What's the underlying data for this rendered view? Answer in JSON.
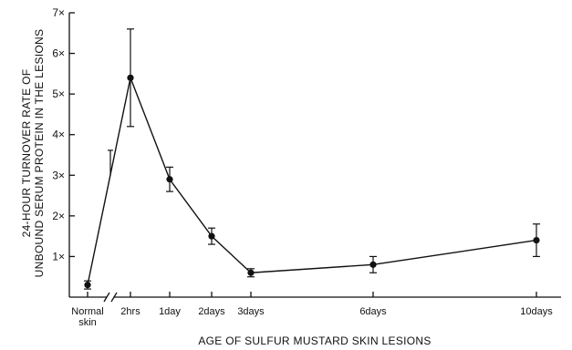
{
  "chart_data": {
    "type": "line",
    "xlabel": "AGE OF SULFUR MUSTARD SKIN LESIONS",
    "ylabel_lines": [
      "24-HOUR TURNOVER RATE OF",
      "UNBOUND SERUM PROTEIN IN THE LESIONS"
    ],
    "x_tick_labels": [
      [
        "Normal",
        "skin"
      ],
      [
        "2hrs"
      ],
      [
        "1day"
      ],
      [
        "2days"
      ],
      [
        "3days"
      ],
      [
        "6days"
      ],
      [
        "10days"
      ]
    ],
    "y_ticks": [
      {
        "value": 1,
        "label": "1×"
      },
      {
        "value": 2,
        "label": "2×"
      },
      {
        "value": 3,
        "label": "3×"
      },
      {
        "value": 4,
        "label": "4×"
      },
      {
        "value": 5,
        "label": "5×"
      },
      {
        "value": 6,
        "label": "6×"
      },
      {
        "value": 7,
        "label": "7×"
      }
    ],
    "ylim": [
      0,
      7
    ],
    "x_axis_break_after": "Normal skin",
    "series": [
      {
        "points": [
          {
            "x": "Normal skin",
            "y": 0.3,
            "err_low": 0.2,
            "err_high": 0.4
          },
          {
            "x": "2hrs",
            "y": 5.4,
            "err_low": 4.2,
            "err_high": 6.6
          },
          {
            "x": "1day",
            "y": 2.9,
            "err_low": 2.6,
            "err_high": 3.2
          },
          {
            "x": "2days",
            "y": 1.5,
            "err_low": 1.3,
            "err_high": 1.7
          },
          {
            "x": "3days",
            "y": 0.6,
            "err_low": 0.5,
            "err_high": 0.7
          },
          {
            "x": "6days",
            "y": 0.8,
            "err_low": 0.6,
            "err_high": 1.0
          },
          {
            "x": "10days",
            "y": 1.4,
            "err_low": 1.0,
            "err_high": 1.8
          }
        ]
      }
    ],
    "annotations": [
      {
        "kind": "point-marker",
        "y": 3.3,
        "between": [
          "Normal skin",
          "2hrs"
        ]
      }
    ],
    "grid": false,
    "legend": "none"
  }
}
